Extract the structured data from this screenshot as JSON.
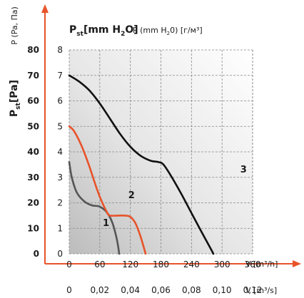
{
  "chart_data": {
    "type": "line",
    "title": "",
    "y_axis_right": {
      "label_main": "P",
      "label_sub": "st",
      "label_unit": "[mm H",
      "label_unit_sub": "2",
      "label_unit_end": "O]",
      "label_secondary": "P (mm H",
      "label_secondary_sub": "2",
      "label_secondary_end": "0) [г/м³]",
      "ticks": [
        "0",
        "1",
        "2",
        "3",
        "4",
        "5",
        "6",
        "7",
        "8"
      ],
      "ylim": [
        0,
        8
      ]
    },
    "y_axis_left": {
      "label_main": "P",
      "label_sub": "st",
      "label_unit": "[Pa]",
      "label_secondary": "P (Pa, Па)",
      "ticks": [
        "0",
        "10",
        "20",
        "30",
        "40",
        "50",
        "60",
        "70",
        "80"
      ]
    },
    "x_axis_top": {
      "label": "V [m³/h]",
      "ticks": [
        "0",
        "60",
        "120",
        "180",
        "240",
        "300",
        "360"
      ],
      "xlim": [
        0,
        370
      ]
    },
    "x_axis_bottom": {
      "label": "V [m³/s]",
      "ticks": [
        "0",
        "0,02",
        "0,04",
        "0,06",
        "0,08",
        "0,10",
        "0,12"
      ]
    },
    "grid": true,
    "series": [
      {
        "name": "1",
        "color": "#555555",
        "x": [
          0,
          5,
          15,
          30,
          45,
          60,
          75,
          85,
          92,
          96,
          98
        ],
        "y": [
          3.6,
          3.0,
          2.4,
          2.05,
          1.9,
          1.85,
          1.6,
          1.2,
          0.7,
          0.3,
          0
        ]
      },
      {
        "name": "2",
        "color": "#e8532a",
        "x": [
          0,
          10,
          25,
          40,
          55,
          65,
          75,
          80,
          95,
          110,
          120,
          130,
          138,
          145,
          150
        ],
        "y": [
          5.0,
          4.8,
          4.2,
          3.4,
          2.5,
          2.0,
          1.6,
          1.5,
          1.5,
          1.5,
          1.45,
          1.2,
          0.8,
          0.35,
          0
        ]
      },
      {
        "name": "3",
        "color": "#111111",
        "x": [
          0,
          20,
          40,
          60,
          80,
          100,
          120,
          140,
          160,
          175,
          185,
          200,
          220,
          240,
          260,
          275,
          283
        ],
        "y": [
          7.0,
          6.75,
          6.4,
          5.9,
          5.3,
          4.7,
          4.2,
          3.85,
          3.65,
          3.6,
          3.5,
          3.05,
          2.35,
          1.6,
          0.85,
          0.3,
          0
        ]
      }
    ],
    "curve_labels": [
      {
        "text": "1",
        "x": 75,
        "y": 1.2
      },
      {
        "text": "2",
        "x": 125,
        "y": 2.3
      },
      {
        "text": "3",
        "x": 345,
        "y": 3.3
      }
    ],
    "colors": {
      "axis_arrow": "#e8532a",
      "grid": "#888888"
    }
  }
}
